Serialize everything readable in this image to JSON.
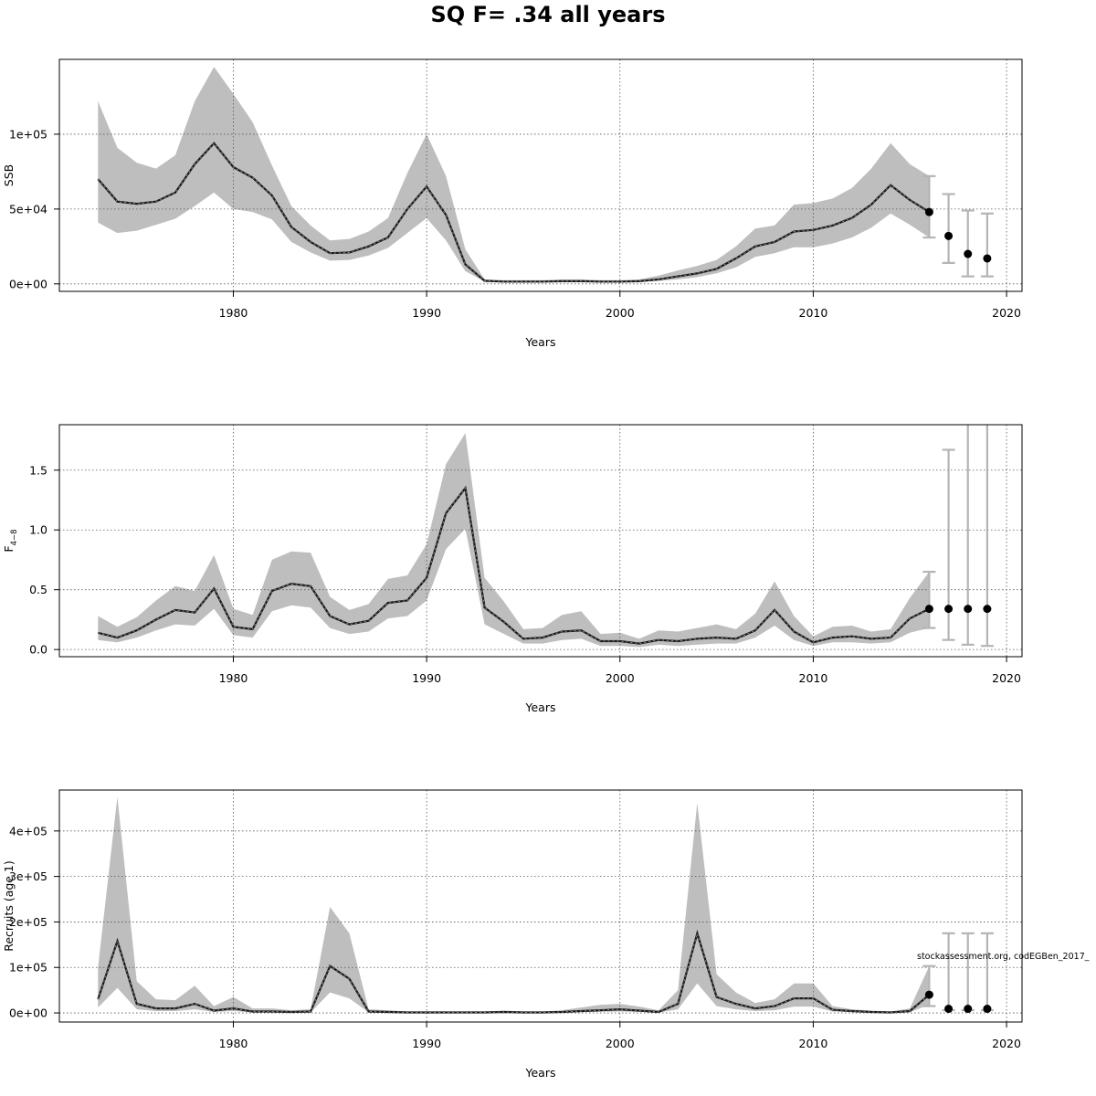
{
  "title": "SQ F= .34 all years",
  "watermark": "stockassessment.org, codEGBen_2017_",
  "colors": {
    "band": "#bebebe",
    "line": "#1a1a1a",
    "grid": "#555555",
    "errbar": "#b4b4b4",
    "point": "#000000"
  },
  "chart_data": [
    {
      "type": "line",
      "panel": "ssb",
      "xlabel": "Years",
      "ylabel": "SSB",
      "xlim": [
        1971,
        2020.8
      ],
      "ylim": [
        -5000,
        150000
      ],
      "xticks": [
        1980,
        1990,
        2000,
        2010,
        2020
      ],
      "yticks": [
        0,
        50000,
        100000
      ],
      "ytick_labels": [
        "0e+00",
        "5e+04",
        "1e+05"
      ],
      "grid": true,
      "band_shown": "confidence interval",
      "x": [
        1973,
        1974,
        1975,
        1976,
        1977,
        1978,
        1979,
        1980,
        1981,
        1982,
        1983,
        1984,
        1985,
        1986,
        1987,
        1988,
        1989,
        1990,
        1991,
        1992,
        1993,
        1994,
        1995,
        1996,
        1997,
        1998,
        1999,
        2000,
        2001,
        2002,
        2003,
        2004,
        2005,
        2006,
        2007,
        2008,
        2009,
        2010,
        2011,
        2012,
        2013,
        2014,
        2015,
        2016
      ],
      "estimate": [
        70000,
        55000,
        53500,
        55000,
        61000,
        80000,
        94000,
        78000,
        71000,
        59000,
        38000,
        28000,
        20500,
        21000,
        25000,
        31000,
        50000,
        65000,
        46000,
        13000,
        2000,
        1500,
        1500,
        1500,
        1800,
        1800,
        1500,
        1500,
        1800,
        3000,
        5000,
        7000,
        10000,
        17000,
        25000,
        28000,
        35000,
        36000,
        39000,
        44000,
        53000,
        66000,
        56000,
        48000
      ],
      "lower": [
        41000,
        34000,
        35500,
        39500,
        43500,
        52000,
        61000,
        50000,
        48000,
        43000,
        28000,
        21000,
        15500,
        16000,
        19000,
        24000,
        34000,
        44000,
        29000,
        8500,
        1500,
        1000,
        1000,
        1000,
        1200,
        1200,
        1000,
        1000,
        1200,
        2000,
        3000,
        4500,
        7000,
        11000,
        18000,
        20500,
        24500,
        24500,
        27000,
        31000,
        37500,
        47000,
        39500,
        31000
      ],
      "upper": [
        122000,
        91000,
        81000,
        77000,
        86000,
        122000,
        145000,
        127000,
        108000,
        79000,
        52000,
        39000,
        29000,
        30000,
        35000,
        44000,
        74000,
        100000,
        72000,
        23000,
        3000,
        2500,
        2500,
        2500,
        3000,
        3000,
        2500,
        2500,
        3000,
        5500,
        9000,
        12000,
        16000,
        25000,
        37000,
        39000,
        53000,
        54000,
        57000,
        64000,
        77000,
        94000,
        80000,
        72000
      ],
      "projection": {
        "x": [
          2016,
          2017,
          2018,
          2019
        ],
        "values": [
          48000,
          32000,
          20000,
          17000
        ],
        "lower": [
          31000,
          14000,
          5000,
          5000
        ],
        "upper": [
          72000,
          60000,
          49000,
          47000
        ]
      }
    },
    {
      "type": "line",
      "panel": "fbar",
      "xlabel": "Years",
      "ylabel": "F",
      "ylabel_subscript": "4−8",
      "xlim": [
        1971,
        2020.8
      ],
      "ylim": [
        -0.06,
        1.88
      ],
      "xticks": [
        1980,
        1990,
        2000,
        2010,
        2020
      ],
      "yticks": [
        0,
        0.5,
        1.0,
        1.5
      ],
      "ytick_labels": [
        "0.0",
        "0.5",
        "1.0",
        "1.5"
      ],
      "grid": true,
      "band_shown": "confidence interval",
      "x": [
        1973,
        1974,
        1975,
        1976,
        1977,
        1978,
        1979,
        1980,
        1981,
        1982,
        1983,
        1984,
        1985,
        1986,
        1987,
        1988,
        1989,
        1990,
        1991,
        1992,
        1993,
        1994,
        1995,
        1996,
        1997,
        1998,
        1999,
        2000,
        2001,
        2002,
        2003,
        2004,
        2005,
        2006,
        2007,
        2008,
        2009,
        2010,
        2011,
        2012,
        2013,
        2014,
        2015,
        2016
      ],
      "estimate": [
        0.14,
        0.1,
        0.16,
        0.25,
        0.33,
        0.31,
        0.51,
        0.19,
        0.17,
        0.49,
        0.55,
        0.53,
        0.28,
        0.21,
        0.24,
        0.39,
        0.41,
        0.6,
        1.14,
        1.35,
        0.35,
        0.23,
        0.09,
        0.1,
        0.15,
        0.16,
        0.07,
        0.07,
        0.05,
        0.08,
        0.07,
        0.09,
        0.1,
        0.09,
        0.16,
        0.33,
        0.15,
        0.06,
        0.1,
        0.11,
        0.09,
        0.1,
        0.26,
        0.34
      ],
      "lower": [
        0.08,
        0.06,
        0.1,
        0.16,
        0.21,
        0.2,
        0.34,
        0.12,
        0.1,
        0.32,
        0.37,
        0.35,
        0.18,
        0.13,
        0.15,
        0.26,
        0.28,
        0.41,
        0.84,
        1.01,
        0.21,
        0.13,
        0.05,
        0.05,
        0.08,
        0.09,
        0.03,
        0.03,
        0.02,
        0.04,
        0.03,
        0.04,
        0.05,
        0.05,
        0.1,
        0.2,
        0.08,
        0.03,
        0.06,
        0.06,
        0.05,
        0.06,
        0.14,
        0.18
      ],
      "upper": [
        0.28,
        0.19,
        0.27,
        0.41,
        0.53,
        0.49,
        0.79,
        0.34,
        0.29,
        0.75,
        0.82,
        0.81,
        0.44,
        0.33,
        0.38,
        0.59,
        0.62,
        0.88,
        1.55,
        1.81,
        0.6,
        0.4,
        0.17,
        0.18,
        0.29,
        0.32,
        0.13,
        0.14,
        0.09,
        0.16,
        0.15,
        0.18,
        0.21,
        0.17,
        0.3,
        0.57,
        0.28,
        0.11,
        0.19,
        0.2,
        0.15,
        0.17,
        0.43,
        0.65
      ],
      "projection": {
        "x": [
          2016,
          2017,
          2018,
          2019
        ],
        "values": [
          0.34,
          0.34,
          0.34,
          0.34
        ],
        "lower": [
          0.18,
          0.08,
          0.04,
          0.03
        ],
        "upper": [
          0.65,
          1.67,
          1.9,
          1.9
        ]
      }
    },
    {
      "type": "line",
      "panel": "recruits",
      "xlabel": "Years",
      "ylabel": "Recruits (age 1)",
      "xlim": [
        1971,
        2020.8
      ],
      "ylim": [
        -20000,
        490000
      ],
      "xticks": [
        1980,
        1990,
        2000,
        2010,
        2020
      ],
      "yticks": [
        0,
        100000,
        200000,
        300000,
        400000
      ],
      "ytick_labels": [
        "0e+00",
        "1e+05",
        "2e+05",
        "3e+05",
        "4e+05"
      ],
      "grid": true,
      "band_shown": "confidence interval",
      "x": [
        1973,
        1974,
        1975,
        1976,
        1977,
        1978,
        1979,
        1980,
        1981,
        1982,
        1983,
        1984,
        1985,
        1986,
        1987,
        1988,
        1989,
        1990,
        1991,
        1992,
        1993,
        1994,
        1995,
        1996,
        1997,
        1998,
        1999,
        2000,
        2001,
        2002,
        2003,
        2004,
        2005,
        2006,
        2007,
        2008,
        2009,
        2010,
        2011,
        2012,
        2013,
        2014,
        2015,
        2016
      ],
      "estimate": [
        30000,
        158000,
        20000,
        10000,
        10000,
        20000,
        5000,
        10000,
        3000,
        3000,
        2000,
        3000,
        103000,
        75000,
        3000,
        2000,
        1000,
        1000,
        1000,
        1000,
        1000,
        2000,
        1000,
        1000,
        2000,
        4000,
        6000,
        8000,
        5000,
        2000,
        20000,
        175000,
        35000,
        20000,
        10000,
        15000,
        32000,
        32000,
        7000,
        4000,
        2000,
        1000,
        4000,
        40000
      ],
      "lower": [
        12000,
        55000,
        8000,
        4000,
        4000,
        8000,
        2000,
        4000,
        1000,
        1000,
        500,
        1000,
        45000,
        32000,
        1000,
        500,
        300,
        300,
        300,
        300,
        300,
        500,
        300,
        300,
        500,
        1500,
        2500,
        3000,
        2000,
        500,
        8000,
        65000,
        15000,
        8000,
        4000,
        6000,
        14000,
        14000,
        3000,
        1500,
        700,
        300,
        1500,
        18000
      ],
      "upper": [
        100000,
        475000,
        70000,
        30000,
        28000,
        60000,
        15000,
        35000,
        10000,
        10000,
        6000,
        8000,
        233000,
        175000,
        8000,
        6000,
        3000,
        3000,
        3000,
        3000,
        3000,
        5000,
        3000,
        3000,
        6000,
        12000,
        18000,
        20000,
        14000,
        6000,
        50000,
        462000,
        85000,
        45000,
        22000,
        30000,
        65000,
        65000,
        15000,
        8000,
        5000,
        3000,
        10000,
        103000
      ],
      "projection": {
        "x": [
          2016,
          2017,
          2018,
          2019
        ],
        "values": [
          40000,
          9000,
          9000,
          9000
        ],
        "lower": [
          15000,
          6000,
          6000,
          6000
        ],
        "upper": [
          103000,
          175000,
          175000,
          175000
        ]
      }
    }
  ]
}
